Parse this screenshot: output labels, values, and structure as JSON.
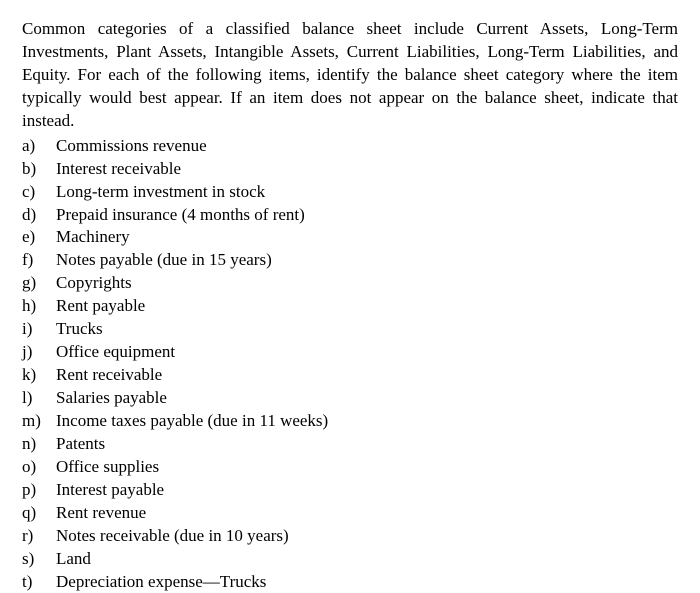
{
  "intro": "Common categories of a classified balance sheet include Current Assets, Long-Term Investments, Plant Assets, Intangible Assets, Current Liabilities, Long-Term Liabilities, and Equity. For each of the following items, identify the balance sheet category where the item typically would best appear. If an item does not appear on the balance sheet, indicate that instead.",
  "items": [
    {
      "marker": "a)",
      "text": "Commissions revenue"
    },
    {
      "marker": "b)",
      "text": "Interest receivable"
    },
    {
      "marker": "c)",
      "text": "Long-term investment in stock"
    },
    {
      "marker": "d)",
      "text": "Prepaid insurance (4 months of rent)"
    },
    {
      "marker": "e)",
      "text": "Machinery"
    },
    {
      "marker": "f)",
      "text": "Notes payable (due in 15 years)"
    },
    {
      "marker": "g)",
      "text": "Copyrights"
    },
    {
      "marker": "h)",
      "text": "Rent payable"
    },
    {
      "marker": "i)",
      "text": "Trucks"
    },
    {
      "marker": "j)",
      "text": "Office equipment"
    },
    {
      "marker": "k)",
      "text": "Rent receivable"
    },
    {
      "marker": "l)",
      "text": "Salaries payable"
    },
    {
      "marker": "m)",
      "text": "Income taxes payable (due in 11 weeks)"
    },
    {
      "marker": "n)",
      "text": "Patents"
    },
    {
      "marker": "o)",
      "text": "Office supplies"
    },
    {
      "marker": "p)",
      "text": "Interest payable"
    },
    {
      "marker": "q)",
      "text": "Rent revenue"
    },
    {
      "marker": "r)",
      "text": "Notes receivable (due in 10 years)"
    },
    {
      "marker": "s)",
      "text": "Land"
    },
    {
      "marker": "t)",
      "text": "Depreciation expense—Trucks"
    }
  ],
  "text_color": "#000000",
  "background_color": "#ffffff",
  "font_family": "Times New Roman",
  "font_size_pt": 13
}
